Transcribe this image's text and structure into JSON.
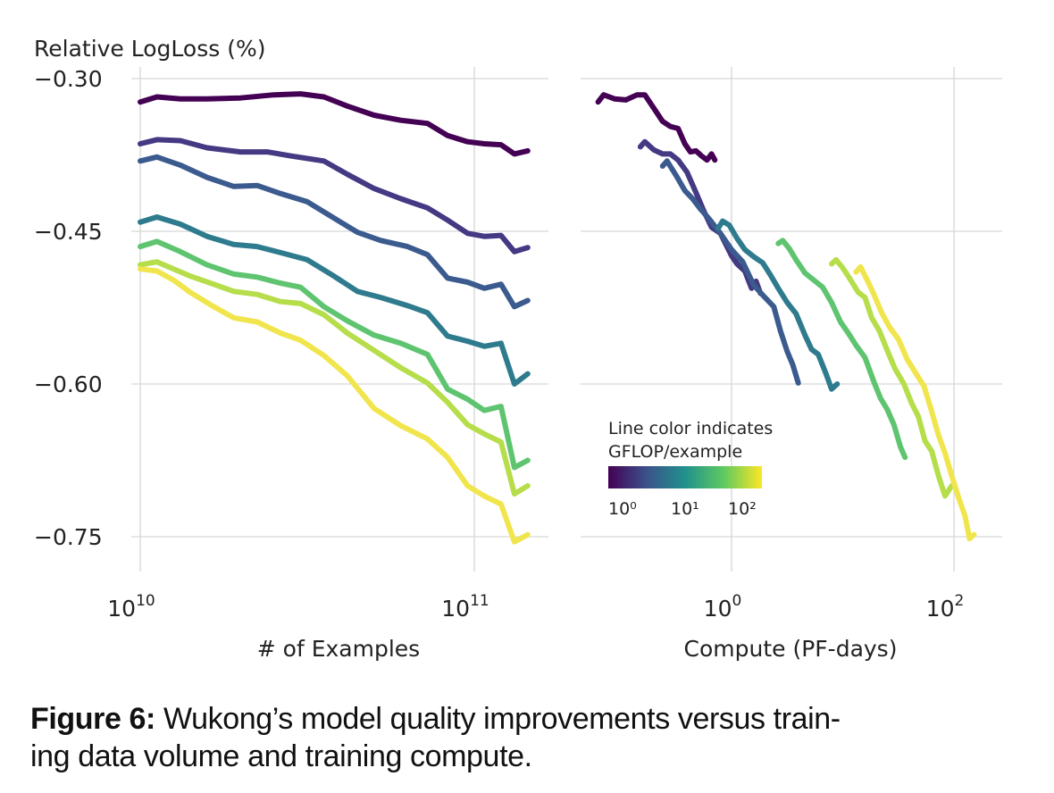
{
  "chart_data": [
    {
      "type": "line",
      "panel": "left",
      "title": "",
      "ylabel": "Relative LogLoss (%)",
      "xlabel": "# of Examples",
      "xscale": "log",
      "xlim_log10": [
        10.0,
        11.22
      ],
      "ylim": [
        -0.78,
        -0.3
      ],
      "yticks": [
        -0.3,
        -0.45,
        -0.6,
        -0.75
      ],
      "ytick_labels": [
        "−0.30",
        "−0.45",
        "−0.60",
        "−0.75"
      ],
      "xticks_log10": [
        10,
        11
      ],
      "xtick_labels": [
        {
          "base": "10",
          "exp": "10"
        },
        {
          "base": "10",
          "exp": "11"
        }
      ],
      "grid": true,
      "series": [
        {
          "name": "GFLOP/example ~10^0.0",
          "color": "#440154",
          "x_log10": [
            10.0,
            10.05,
            10.12,
            10.2,
            10.3,
            10.4,
            10.48,
            10.55,
            10.62,
            10.7,
            10.78,
            10.86,
            10.92,
            10.98,
            11.03,
            11.08,
            11.12,
            11.16
          ],
          "y": [
            -0.323,
            -0.318,
            -0.32,
            -0.32,
            -0.319,
            -0.316,
            -0.315,
            -0.318,
            -0.327,
            -0.336,
            -0.341,
            -0.344,
            -0.356,
            -0.362,
            -0.364,
            -0.365,
            -0.374,
            -0.371
          ]
        },
        {
          "name": "GFLOP/example ~10^0.4",
          "color": "#443983",
          "x_log10": [
            10.0,
            10.05,
            10.12,
            10.2,
            10.3,
            10.38,
            10.45,
            10.55,
            10.62,
            10.7,
            10.78,
            10.86,
            10.92,
            10.98,
            11.03,
            11.08,
            11.12,
            11.16
          ],
          "y": [
            -0.364,
            -0.36,
            -0.361,
            -0.368,
            -0.372,
            -0.372,
            -0.376,
            -0.381,
            -0.394,
            -0.408,
            -0.418,
            -0.427,
            -0.439,
            -0.452,
            -0.455,
            -0.454,
            -0.47,
            -0.466
          ]
        },
        {
          "name": "GFLOP/example ~10^0.8",
          "color": "#3b5a8e",
          "x_log10": [
            10.0,
            10.05,
            10.12,
            10.2,
            10.28,
            10.35,
            10.42,
            10.5,
            10.58,
            10.65,
            10.72,
            10.8,
            10.86,
            10.92,
            10.98,
            11.03,
            11.08,
            11.12,
            11.16
          ],
          "y": [
            -0.381,
            -0.377,
            -0.385,
            -0.397,
            -0.406,
            -0.405,
            -0.413,
            -0.421,
            -0.437,
            -0.451,
            -0.459,
            -0.465,
            -0.473,
            -0.496,
            -0.5,
            -0.506,
            -0.502,
            -0.524,
            -0.518
          ]
        },
        {
          "name": "GFLOP/example ~10^1.2",
          "color": "#2f7b8e",
          "x_log10": [
            10.0,
            10.05,
            10.12,
            10.2,
            10.28,
            10.35,
            10.42,
            10.5,
            10.58,
            10.65,
            10.72,
            10.8,
            10.86,
            10.92,
            10.98,
            11.03,
            11.08,
            11.12,
            11.16
          ],
          "y": [
            -0.441,
            -0.436,
            -0.443,
            -0.455,
            -0.463,
            -0.465,
            -0.471,
            -0.478,
            -0.494,
            -0.509,
            -0.515,
            -0.523,
            -0.53,
            -0.553,
            -0.558,
            -0.563,
            -0.56,
            -0.6,
            -0.59
          ]
        },
        {
          "name": "GFLOP/example ~10^1.6",
          "color": "#5ec46f",
          "x_log10": [
            10.0,
            10.05,
            10.12,
            10.2,
            10.28,
            10.35,
            10.42,
            10.48,
            10.55,
            10.62,
            10.7,
            10.78,
            10.86,
            10.92,
            10.98,
            11.03,
            11.08,
            11.12,
            11.16
          ],
          "y": [
            -0.465,
            -0.46,
            -0.47,
            -0.483,
            -0.492,
            -0.495,
            -0.501,
            -0.505,
            -0.524,
            -0.538,
            -0.552,
            -0.56,
            -0.571,
            -0.605,
            -0.615,
            -0.626,
            -0.622,
            -0.682,
            -0.675
          ]
        },
        {
          "name": "GFLOP/example ~10^2.0",
          "color": "#b6dd4a",
          "x_log10": [
            10.0,
            10.05,
            10.1,
            10.15,
            10.22,
            10.28,
            10.35,
            10.42,
            10.48,
            10.55,
            10.62,
            10.7,
            10.78,
            10.86,
            10.92,
            10.98,
            11.03,
            11.08,
            11.12,
            11.16
          ],
          "y": [
            -0.483,
            -0.48,
            -0.487,
            -0.494,
            -0.502,
            -0.509,
            -0.512,
            -0.519,
            -0.521,
            -0.532,
            -0.55,
            -0.567,
            -0.584,
            -0.599,
            -0.618,
            -0.64,
            -0.649,
            -0.657,
            -0.708,
            -0.7
          ]
        },
        {
          "name": "GFLOP/example ~10^2.3",
          "color": "#f1e54d",
          "x_log10": [
            10.0,
            10.05,
            10.1,
            10.15,
            10.22,
            10.28,
            10.35,
            10.42,
            10.48,
            10.55,
            10.62,
            10.7,
            10.78,
            10.86,
            10.92,
            10.98,
            11.03,
            11.08,
            11.12,
            11.16
          ],
          "y": [
            -0.487,
            -0.489,
            -0.498,
            -0.51,
            -0.524,
            -0.535,
            -0.539,
            -0.55,
            -0.557,
            -0.572,
            -0.592,
            -0.624,
            -0.641,
            -0.654,
            -0.672,
            -0.7,
            -0.71,
            -0.718,
            -0.755,
            -0.748
          ]
        }
      ]
    },
    {
      "type": "line",
      "panel": "right",
      "title": "",
      "ylabel": "",
      "xlabel": "Compute (PF-days)",
      "xscale": "log",
      "xlim_log10": [
        -1.37,
        2.44
      ],
      "ylim": [
        -0.78,
        -0.3
      ],
      "yticks": [
        -0.3,
        -0.45,
        -0.6,
        -0.75
      ],
      "xticks_log10": [
        0,
        2
      ],
      "xtick_labels": [
        {
          "base": "10",
          "exp": "0"
        },
        {
          "base": "10",
          "exp": "2"
        }
      ],
      "grid": true,
      "series": [
        {
          "name": "GFLOP/example ~10^0.0",
          "color": "#440154",
          "x_log10": [
            -1.2,
            -1.15,
            -1.05,
            -0.95,
            -0.85,
            -0.78,
            -0.7,
            -0.62,
            -0.55,
            -0.48,
            -0.42,
            -0.37,
            -0.32,
            -0.27,
            -0.22,
            -0.18,
            -0.15
          ],
          "y": [
            -0.323,
            -0.316,
            -0.32,
            -0.321,
            -0.316,
            -0.316,
            -0.329,
            -0.342,
            -0.347,
            -0.349,
            -0.364,
            -0.372,
            -0.371,
            -0.376,
            -0.38,
            -0.374,
            -0.38
          ]
        },
        {
          "name": "GFLOP/example ~10^0.4",
          "color": "#443983",
          "x_log10": [
            -0.82,
            -0.78,
            -0.7,
            -0.62,
            -0.55,
            -0.48,
            -0.4,
            -0.32,
            -0.25,
            -0.18,
            -0.1,
            0.0,
            0.05,
            0.12,
            0.18,
            0.22,
            0.26
          ],
          "y": [
            -0.367,
            -0.362,
            -0.37,
            -0.374,
            -0.374,
            -0.38,
            -0.392,
            -0.412,
            -0.43,
            -0.446,
            -0.452,
            -0.474,
            -0.482,
            -0.489,
            -0.506,
            -0.499,
            -0.511
          ]
        },
        {
          "name": "GFLOP/example ~10^0.8",
          "color": "#3b5a8e",
          "x_log10": [
            -0.62,
            -0.58,
            -0.5,
            -0.42,
            -0.35,
            -0.28,
            -0.2,
            -0.1,
            0.0,
            0.1,
            0.2,
            0.3,
            0.38,
            0.44,
            0.5,
            0.55,
            0.6
          ],
          "y": [
            -0.386,
            -0.381,
            -0.395,
            -0.41,
            -0.418,
            -0.428,
            -0.438,
            -0.452,
            -0.468,
            -0.48,
            -0.503,
            -0.515,
            -0.524,
            -0.548,
            -0.568,
            -0.581,
            -0.599
          ]
        },
        {
          "name": "GFLOP/example ~10^1.2",
          "color": "#2f7b8e",
          "x_log10": [
            -0.12,
            -0.08,
            -0.02,
            0.05,
            0.12,
            0.2,
            0.28,
            0.35,
            0.42,
            0.5,
            0.58,
            0.66,
            0.72,
            0.78,
            0.85,
            0.9,
            0.95
          ],
          "y": [
            -0.447,
            -0.44,
            -0.444,
            -0.457,
            -0.468,
            -0.475,
            -0.481,
            -0.493,
            -0.506,
            -0.52,
            -0.531,
            -0.552,
            -0.566,
            -0.571,
            -0.59,
            -0.605,
            -0.6
          ]
        },
        {
          "name": "GFLOP/example ~10^1.6",
          "color": "#5ec46f",
          "x_log10": [
            0.42,
            0.46,
            0.52,
            0.58,
            0.66,
            0.74,
            0.82,
            0.9,
            0.98,
            1.05,
            1.12,
            1.2,
            1.28,
            1.34,
            1.4,
            1.46,
            1.52,
            1.56
          ],
          "y": [
            -0.462,
            -0.459,
            -0.467,
            -0.478,
            -0.491,
            -0.498,
            -0.505,
            -0.52,
            -0.539,
            -0.55,
            -0.562,
            -0.574,
            -0.598,
            -0.614,
            -0.625,
            -0.64,
            -0.662,
            -0.672
          ]
        },
        {
          "name": "GFLOP/example ~10^2.0",
          "color": "#b6dd4a",
          "x_log10": [
            0.9,
            0.94,
            1.0,
            1.06,
            1.14,
            1.2,
            1.26,
            1.33,
            1.4,
            1.47,
            1.55,
            1.62,
            1.68,
            1.74,
            1.8,
            1.86,
            1.92,
            1.98
          ],
          "y": [
            -0.482,
            -0.478,
            -0.486,
            -0.496,
            -0.51,
            -0.515,
            -0.535,
            -0.548,
            -0.567,
            -0.585,
            -0.6,
            -0.619,
            -0.632,
            -0.656,
            -0.666,
            -0.69,
            -0.71,
            -0.7
          ]
        },
        {
          "name": "GFLOP/example ~10^2.3",
          "color": "#f1e54d",
          "x_log10": [
            1.12,
            1.16,
            1.22,
            1.28,
            1.35,
            1.42,
            1.5,
            1.58,
            1.66,
            1.73,
            1.8,
            1.86,
            1.92,
            1.98,
            2.04,
            2.1,
            2.14,
            2.18
          ],
          "y": [
            -0.49,
            -0.485,
            -0.498,
            -0.512,
            -0.53,
            -0.544,
            -0.556,
            -0.576,
            -0.59,
            -0.602,
            -0.627,
            -0.65,
            -0.668,
            -0.69,
            -0.711,
            -0.73,
            -0.752,
            -0.748
          ]
        }
      ]
    }
  ],
  "legend": {
    "title_line1": "Line color indicates",
    "title_line2": "GFLOP/example",
    "colormap": "viridis",
    "colors": [
      "#440154",
      "#3b528b",
      "#21918c",
      "#5ec962",
      "#fde725"
    ],
    "tick_labels": [
      "10⁰",
      "10¹",
      "10²"
    ],
    "placement": "right-panel center-left"
  },
  "caption": {
    "label": "Figure 6:",
    "text": " Wukong’s model quality improvements versus training data volume and training compute.",
    "line1_text": " Wukong’s model quality improvements versus train-",
    "line2_text": "ing data volume and training compute."
  }
}
